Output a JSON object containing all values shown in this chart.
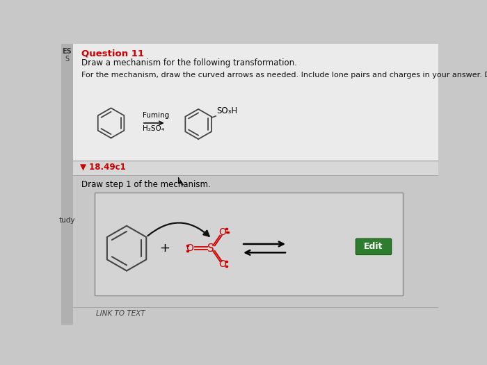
{
  "bg_color": "#c8c8c8",
  "top_section_bg": "#ebebeb",
  "section_bar_bg": "#d8d8d8",
  "mech_box_bg": "#d4d4d4",
  "title_text": "Question 11",
  "title_color": "#cc0000",
  "subtitle_text": "Draw a mechanism for the following transformation.",
  "instruction_text": "For the mechanism, draw the curved arrows as needed. Include lone pairs and charges in your answer. Do n",
  "section_label": "▼ 18.49c1",
  "section_label_color": "#cc0000",
  "step_text": "Draw step 1 of the mechanism.",
  "fuming_text": "Fuming",
  "h2so4_text": "H₂SO₄",
  "so3h_text": "SO₃H",
  "plus_text": "+",
  "edit_button_text": "Edit",
  "edit_button_color": "#2e7d2e",
  "edit_button_text_color": "#ffffff",
  "link_text": "LINK TO TEXT",
  "left_col_bg": "#b0b0b0",
  "left_col_text1": "ES",
  "left_col_text2": "S",
  "left_col_text3": "tudy",
  "divider_color": "#999999",
  "ring_color": "#444444",
  "so3_color": "#cc0000",
  "arrow_color": "#111111"
}
